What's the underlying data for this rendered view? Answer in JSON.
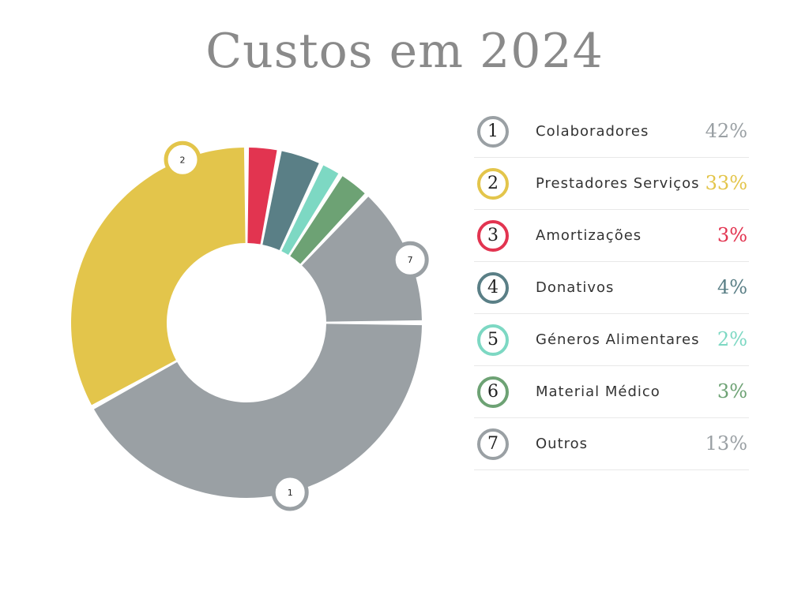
{
  "chart_data": {
    "type": "pie",
    "title": "Custos em 2024",
    "series": [
      {
        "number": "1",
        "label": "Colaboradores",
        "value": 42,
        "percent_label": "42%",
        "color": "#9aa0a4"
      },
      {
        "number": "2",
        "label": "Prestadores Serviços",
        "value": 33,
        "percent_label": "33%",
        "color": "#e3c54b"
      },
      {
        "number": "3",
        "label": "Amortizações",
        "value": 3,
        "percent_label": "3%",
        "color": "#e23450"
      },
      {
        "number": "4",
        "label": "Donativos",
        "value": 4,
        "percent_label": "4%",
        "color": "#5a7f86"
      },
      {
        "number": "5",
        "label": "Géneros Alimentares",
        "value": 2,
        "percent_label": "2%",
        "color": "#7dd8c3"
      },
      {
        "number": "6",
        "label": "Material Médico",
        "value": 3,
        "percent_label": "3%",
        "color": "#6da274"
      },
      {
        "number": "7",
        "label": "Outros",
        "value": 13,
        "percent_label": "13%",
        "color": "#9aa0a4"
      }
    ],
    "badge_slices": [
      "1",
      "2",
      "7"
    ]
  }
}
